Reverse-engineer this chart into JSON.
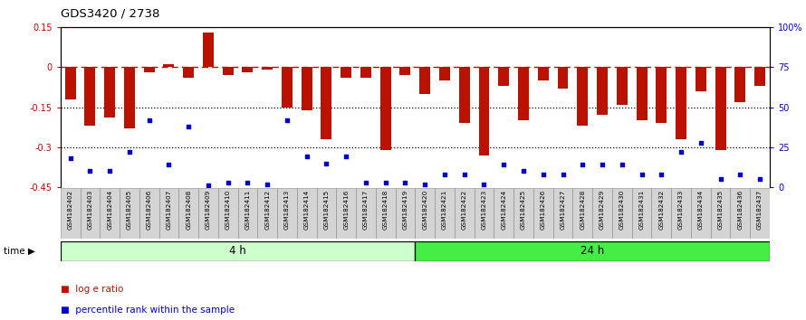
{
  "title": "GDS3420 / 2738",
  "categories": [
    "GSM182402",
    "GSM182403",
    "GSM182404",
    "GSM182405",
    "GSM182406",
    "GSM182407",
    "GSM182408",
    "GSM182409",
    "GSM182410",
    "GSM182411",
    "GSM182412",
    "GSM182413",
    "GSM182414",
    "GSM182415",
    "GSM182416",
    "GSM182417",
    "GSM182418",
    "GSM182419",
    "GSM182420",
    "GSM182421",
    "GSM182422",
    "GSM182423",
    "GSM182424",
    "GSM182425",
    "GSM182426",
    "GSM182427",
    "GSM182428",
    "GSM182429",
    "GSM182430",
    "GSM182431",
    "GSM182432",
    "GSM182433",
    "GSM182434",
    "GSM182435",
    "GSM182436",
    "GSM182437"
  ],
  "log_e_ratio": [
    -0.12,
    -0.22,
    -0.19,
    -0.23,
    -0.02,
    0.01,
    -0.04,
    0.13,
    -0.03,
    -0.02,
    -0.01,
    -0.15,
    -0.16,
    -0.27,
    -0.04,
    -0.04,
    -0.31,
    -0.03,
    -0.1,
    -0.05,
    -0.21,
    -0.33,
    -0.07,
    -0.2,
    -0.05,
    -0.08,
    -0.22,
    -0.18,
    -0.14,
    -0.2,
    -0.21,
    -0.27,
    -0.09,
    -0.31,
    -0.13,
    -0.07
  ],
  "percentile_rank": [
    18,
    10,
    10,
    22,
    42,
    14,
    38,
    1,
    3,
    3,
    2,
    42,
    19,
    15,
    19,
    3,
    3,
    3,
    2,
    8,
    8,
    2,
    14,
    10,
    8,
    8,
    14,
    14,
    14,
    8,
    8,
    22,
    28,
    5,
    8,
    5
  ],
  "group_labels": [
    "4 h",
    "24 h"
  ],
  "group_split": 18,
  "group_color_4h": "#ccffcc",
  "group_color_24h": "#44ee44",
  "bar_color": "#bb1100",
  "dot_color": "#0000cc",
  "ylim_left": [
    -0.45,
    0.15
  ],
  "ylim_right": [
    0,
    100
  ],
  "yticks_left": [
    -0.45,
    -0.3,
    -0.15,
    0.0,
    0.15
  ],
  "ytick_labels_left": [
    "-0.45",
    "-0.3",
    "-0.15",
    "0",
    "0.15"
  ],
  "yticks_right": [
    0,
    25,
    50,
    75,
    100
  ],
  "ytick_labels_right": [
    "0",
    "25",
    "50",
    "75",
    "100%"
  ],
  "dotted_line_y": [
    -0.15,
    -0.3
  ],
  "dashed_line_y": 0.0,
  "background_color": "#ffffff"
}
